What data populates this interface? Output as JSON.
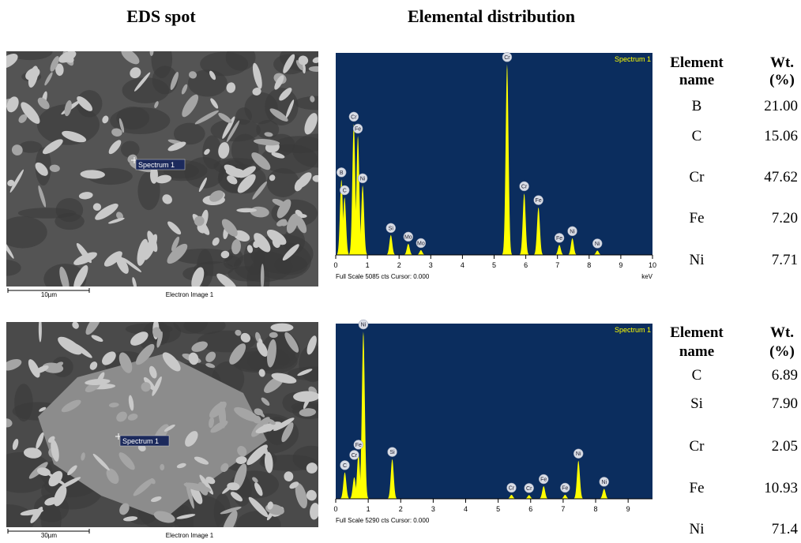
{
  "headers": {
    "spot": "EDS spot",
    "distribution": "Elemental distribution"
  },
  "panels": [
    {
      "image": {
        "marker": "Spectrum 1",
        "scale": "10µm",
        "caption": "Electron Image 1"
      },
      "spectrum": {
        "type": "spectrum",
        "title": "Spectrum 1",
        "footer": "Full Scale 5085 cts Cursor: 0.000",
        "unit": "keV",
        "xlim": [
          0,
          10
        ],
        "xticks": [
          0,
          1,
          2,
          3,
          4,
          5,
          6,
          7,
          8,
          9,
          10
        ],
        "ylim": [
          0,
          5085
        ],
        "color": "#ffff00",
        "background": "#0b2d5e",
        "peaks": [
          {
            "label": "B",
            "x": 0.18,
            "counts": 1900
          },
          {
            "label": "C",
            "x": 0.28,
            "counts": 1450
          },
          {
            "label": "Cr",
            "x": 0.57,
            "counts": 3300
          },
          {
            "label": "Fe",
            "x": 0.7,
            "counts": 3000
          },
          {
            "label": "Ni",
            "x": 0.85,
            "counts": 1750
          },
          {
            "label": "Si",
            "x": 1.74,
            "counts": 500
          },
          {
            "label": "Mo",
            "x": 2.29,
            "counts": 280
          },
          {
            "label": "Mo",
            "x": 2.69,
            "counts": 120
          },
          {
            "label": "Cr",
            "x": 5.41,
            "counts": 4800
          },
          {
            "label": "Cr",
            "x": 5.95,
            "counts": 1550
          },
          {
            "label": "Fe",
            "x": 6.4,
            "counts": 1200
          },
          {
            "label": "Fe",
            "x": 7.06,
            "counts": 250
          },
          {
            "label": "Ni",
            "x": 7.47,
            "counts": 420
          },
          {
            "label": "Ni",
            "x": 8.26,
            "counts": 110
          }
        ]
      },
      "table": {
        "columns": [
          [
            "Element",
            "name"
          ],
          [
            "Wt.",
            "(%)"
          ]
        ],
        "rows": [
          [
            "B",
            "21.00"
          ],
          [
            "C",
            "15.06"
          ],
          [
            "Cr",
            "47.62"
          ],
          [
            "Fe",
            "7.20"
          ],
          [
            "Ni",
            "7.71"
          ]
        ]
      }
    },
    {
      "image": {
        "marker": "Spectrum 1",
        "scale": "30µm",
        "caption": "Electron Image 1"
      },
      "spectrum": {
        "type": "spectrum",
        "title": "Spectrum 1",
        "footer": "Full Scale 5290 cts Cursor: 0.000",
        "xlim": [
          0,
          9.75
        ],
        "xticks": [
          0,
          1,
          2,
          3,
          4,
          5,
          6,
          7,
          8,
          9
        ],
        "ylim": [
          0,
          5290
        ],
        "color": "#ffff00",
        "background": "#0b2d5e",
        "peaks": [
          {
            "label": "C",
            "x": 0.28,
            "counts": 800
          },
          {
            "label": "Cr",
            "x": 0.57,
            "counts": 650
          },
          {
            "label": "Fe",
            "x": 0.7,
            "counts": 1350
          },
          {
            "label": "Ni",
            "x": 0.85,
            "counts": 5050
          },
          {
            "label": "Si",
            "x": 1.74,
            "counts": 1200
          },
          {
            "label": "Cr",
            "x": 5.41,
            "counts": 120
          },
          {
            "label": "Cr",
            "x": 5.95,
            "counts": 110
          },
          {
            "label": "Fe",
            "x": 6.4,
            "counts": 380
          },
          {
            "label": "Fe",
            "x": 7.06,
            "counts": 120
          },
          {
            "label": "Ni",
            "x": 7.47,
            "counts": 1150
          },
          {
            "label": "Ni",
            "x": 8.26,
            "counts": 300
          }
        ]
      },
      "table": {
        "columns": [
          [
            "Element",
            "name"
          ],
          [
            "Wt.",
            "(%)"
          ]
        ],
        "rows": [
          [
            "C",
            "6.89"
          ],
          [
            "Si",
            "7.90"
          ],
          [
            "Cr",
            "2.05"
          ],
          [
            "Fe",
            "10.93"
          ],
          [
            "Ni",
            "71.4"
          ]
        ]
      }
    }
  ]
}
